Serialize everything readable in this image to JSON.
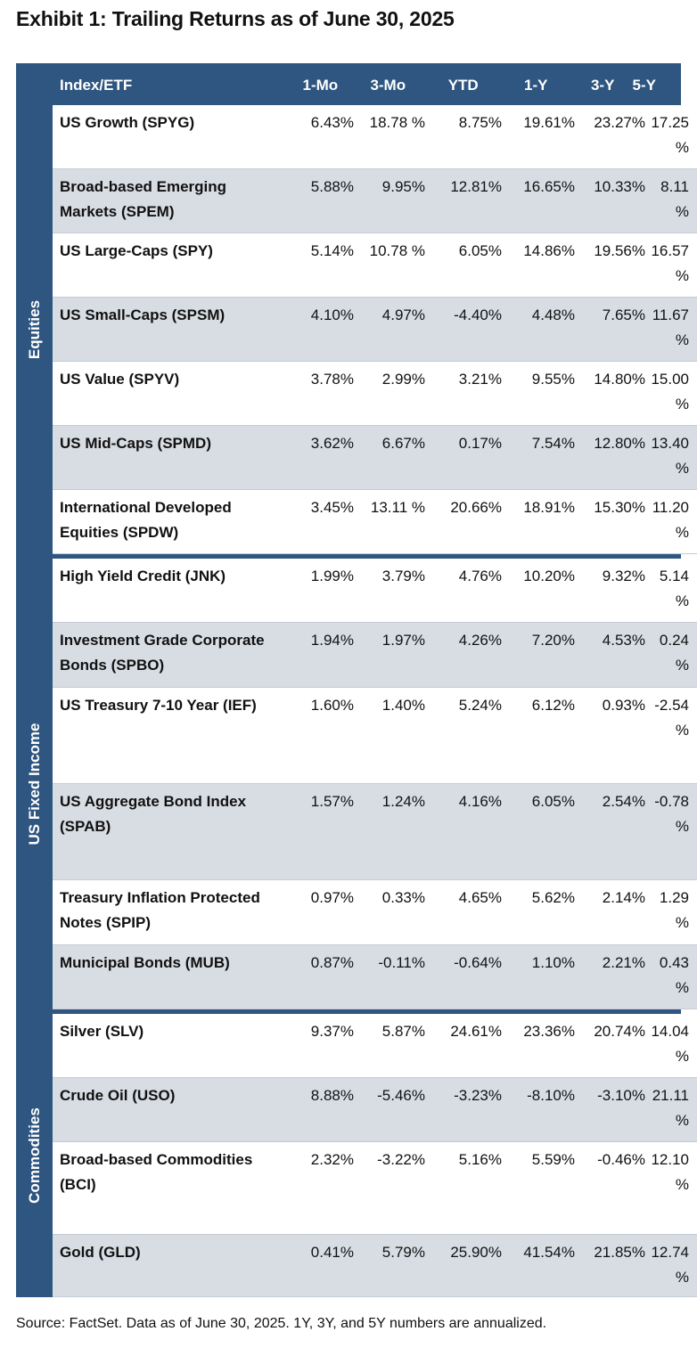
{
  "title": "Exhibit 1: Trailing Returns as of June 30, 2025",
  "columns": [
    "Index/ETF",
    "1-Mo",
    "3-Mo",
    "YTD",
    "1-Y",
    "3-Y",
    "5-Y"
  ],
  "sections": [
    {
      "label": "Equities",
      "rows": [
        {
          "name": "US Growth (SPYG)",
          "v": [
            "6.43%",
            "18.78 %",
            "8.75%",
            "19.61%",
            "23.27%",
            "17.25 %"
          ]
        },
        {
          "name": "Broad-based Emerging Markets (SPEM)",
          "v": [
            "5.88%",
            "9.95%",
            "12.81%",
            "16.65%",
            "10.33%",
            "8.11 %"
          ]
        },
        {
          "name": "US Large-Caps (SPY)",
          "v": [
            "5.14%",
            "10.78 %",
            "6.05%",
            "14.86%",
            "19.56%",
            "16.57 %"
          ]
        },
        {
          "name": "US Small-Caps (SPSM)",
          "v": [
            "4.10%",
            "4.97%",
            "-4.40%",
            "4.48%",
            "7.65%",
            "11.67 %"
          ]
        },
        {
          "name": "US Value (SPYV)",
          "v": [
            "3.78%",
            "2.99%",
            "3.21%",
            "9.55%",
            "14.80%",
            "15.00 %"
          ]
        },
        {
          "name": "US Mid-Caps (SPMD)",
          "v": [
            "3.62%",
            "6.67%",
            "0.17%",
            "7.54%",
            "12.80%",
            "13.40 %"
          ]
        },
        {
          "name": "International Developed Equities (SPDW)",
          "v": [
            "3.45%",
            "13.11 %",
            "20.66%",
            "18.91%",
            "15.30%",
            "11.20 %"
          ]
        }
      ]
    },
    {
      "label": "US Fixed Income",
      "rows": [
        {
          "name": "High Yield Credit (JNK)",
          "v": [
            "1.99%",
            "3.79%",
            "4.76%",
            "10.20%",
            "9.32%",
            "5.14 %"
          ]
        },
        {
          "name": "Investment Grade Corporate Bonds (SPBO)",
          "v": [
            "1.94%",
            "1.97%",
            "4.26%",
            "7.20%",
            "4.53%",
            "0.24 %"
          ]
        },
        {
          "name": "US Treasury 7-10 Year (IEF)",
          "v": [
            "1.60%",
            "1.40%",
            "5.24%",
            "6.12%",
            "0.93%",
            "-2.54 %"
          ]
        },
        {
          "name": "US Aggregate Bond Index (SPAB)",
          "v": [
            "1.57%",
            "1.24%",
            "4.16%",
            "6.05%",
            "2.54%",
            "-0.78 %"
          ]
        },
        {
          "name": "Treasury Inflation Protected Notes (SPIP)",
          "v": [
            "0.97%",
            "0.33%",
            "4.65%",
            "5.62%",
            "2.14%",
            "1.29 %"
          ]
        },
        {
          "name": "Municipal Bonds (MUB)",
          "v": [
            "0.87%",
            "-0.11%",
            "-0.64%",
            "1.10%",
            "2.21%",
            "0.43 %"
          ]
        }
      ]
    },
    {
      "label": "Commodities",
      "rows": [
        {
          "name": "Silver (SLV)",
          "v": [
            "9.37%",
            "5.87%",
            "24.61%",
            "23.36%",
            "20.74%",
            "14.04 %"
          ]
        },
        {
          "name": "Crude Oil (USO)",
          "v": [
            "8.88%",
            "-5.46%",
            "-3.23%",
            "-8.10%",
            "-3.10%",
            "21.11 %"
          ]
        },
        {
          "name": "Broad-based Commodities (BCI)",
          "v": [
            "2.32%",
            "-3.22%",
            "5.16%",
            "5.59%",
            "-0.46%",
            "12.10 %"
          ]
        },
        {
          "name": "Gold (GLD)",
          "v": [
            "0.41%",
            "5.79%",
            "25.90%",
            "41.54%",
            "21.85%",
            "12.74 %"
          ]
        }
      ]
    }
  ],
  "footer": "Source: FactSet. Data as of June 30, 2025. 1Y, 3Y, and 5Y numbers are annualized."
}
